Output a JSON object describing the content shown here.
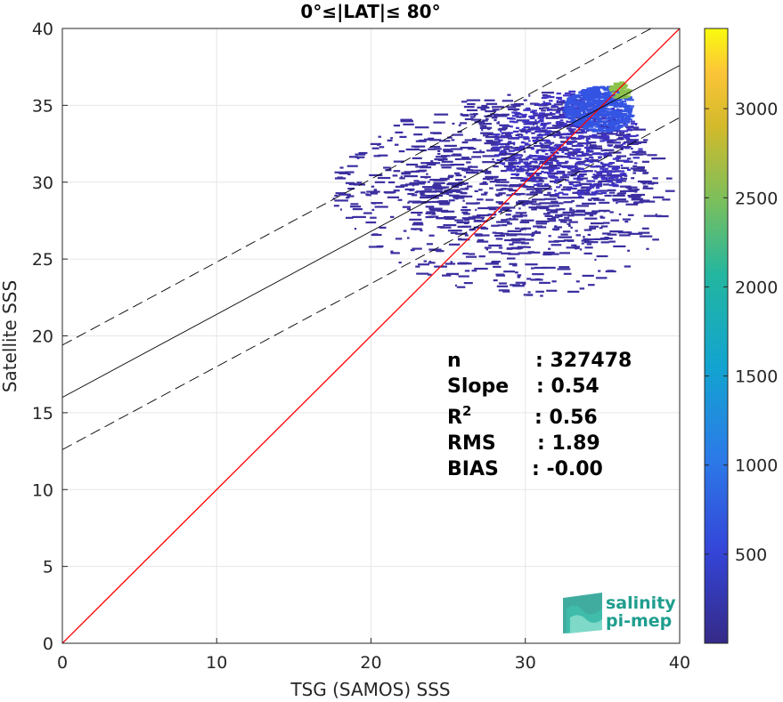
{
  "chart_data": {
    "type": "heatmap",
    "title": "0°≤|LAT|≤ 80°",
    "xlabel": "TSG (SAMOS) SSS",
    "ylabel": "Satellite SSS",
    "xlim": [
      0,
      40
    ],
    "ylim": [
      0,
      40
    ],
    "xticks": [
      "0",
      "10",
      "20",
      "30",
      "40"
    ],
    "yticks": [
      "0",
      "5",
      "10",
      "15",
      "20",
      "25",
      "30",
      "35",
      "40"
    ],
    "grid": true,
    "colormap": "parula",
    "colorbar": {
      "range": [
        0,
        3450
      ],
      "ticks": [
        "500",
        "1000",
        "1500",
        "2000",
        "2500",
        "3000"
      ]
    },
    "lines": [
      {
        "kind": "identity",
        "color": "#ff0000",
        "x": [
          0,
          40
        ],
        "y": [
          0,
          40
        ]
      },
      {
        "kind": "fit",
        "color": "#000000",
        "x": [
          0,
          40
        ],
        "y": [
          16.0,
          37.6
        ]
      },
      {
        "kind": "fit-upper",
        "color": "#000000",
        "dashed": true,
        "x": [
          0,
          40
        ],
        "y": [
          19.4,
          41.0
        ]
      },
      {
        "kind": "fit-lower",
        "color": "#000000",
        "dashed": true,
        "x": [
          0,
          40
        ],
        "y": [
          12.6,
          34.2
        ]
      }
    ],
    "density_regions": [
      {
        "x": [
          17.5,
          39.5
        ],
        "y": [
          21.5,
          37.0
        ],
        "level": 0.04
      },
      {
        "x": [
          22.0,
          38.0
        ],
        "y": [
          24.5,
          36.5
        ],
        "level": 0.1
      },
      {
        "x": [
          28.0,
          37.5
        ],
        "y": [
          28.5,
          36.5
        ],
        "level": 0.18
      },
      {
        "x": [
          32.5,
          37.0
        ],
        "y": [
          33.0,
          36.5
        ],
        "level": 0.35
      },
      {
        "x": [
          35.5,
          36.8
        ],
        "y": [
          35.3,
          36.6
        ],
        "level": 0.85
      }
    ],
    "stats": [
      {
        "label": "n",
        "value": ": 327478"
      },
      {
        "label": "Slope",
        "value": ": 0.54"
      },
      {
        "label": "R",
        "sup": "2",
        "value": ": 0.56"
      },
      {
        "label": "RMS",
        "value": ": 1.89"
      },
      {
        "label": "BIAS",
        "value": ": -0.00"
      }
    ]
  },
  "logo": {
    "line1": "salinity",
    "line2": "pi-mep",
    "color": "#1f9e8e"
  }
}
